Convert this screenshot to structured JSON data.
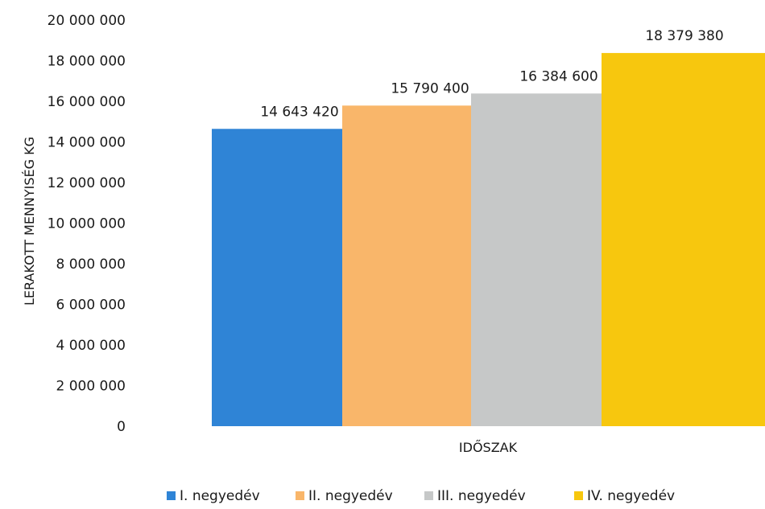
{
  "chart_data": {
    "type": "bar",
    "title": "",
    "xlabel": "IDŐSZAK",
    "ylabel": "LERAKOTT MENNYISÉG KG",
    "categories": [
      "IDŐSZAK"
    ],
    "ylim": [
      0,
      20000000
    ],
    "yticks": [
      {
        "value": 0,
        "label": "0"
      },
      {
        "value": 2000000,
        "label": "2 000 000"
      },
      {
        "value": 4000000,
        "label": "4 000 000"
      },
      {
        "value": 6000000,
        "label": "6 000 000"
      },
      {
        "value": 8000000,
        "label": "8 000 000"
      },
      {
        "value": 10000000,
        "label": "10 000 000"
      },
      {
        "value": 12000000,
        "label": "12 000 000"
      },
      {
        "value": 14000000,
        "label": "14 000 000"
      },
      {
        "value": 16000000,
        "label": "16 000 000"
      },
      {
        "value": 18000000,
        "label": "18 000 000"
      },
      {
        "value": 20000000,
        "label": "20 000 000"
      }
    ],
    "series": [
      {
        "name": "I. negyedév",
        "value": 14643420,
        "label": "14 643 420",
        "color": "#2f84d6"
      },
      {
        "name": "II. negyedév",
        "value": 15790400,
        "label": "15 790 400",
        "color": "#f9b66a"
      },
      {
        "name": "III. negyedév",
        "value": 16384600,
        "label": "16 384 600",
        "color": "#c6c8c8"
      },
      {
        "name": "IV. negyedév",
        "value": 18379380,
        "label": "18 379 380",
        "color": "#f7c70e"
      }
    ],
    "grid": false,
    "legend": "bottom"
  }
}
